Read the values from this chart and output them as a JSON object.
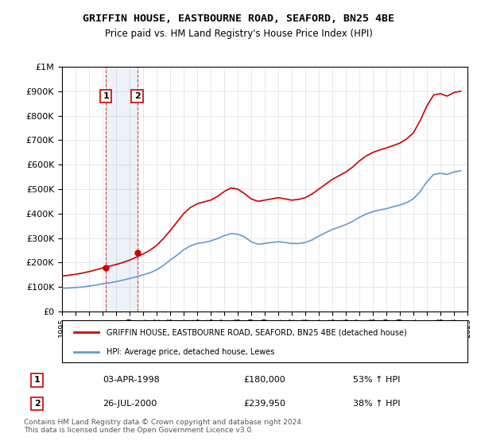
{
  "title": "GRIFFIN HOUSE, EASTBOURNE ROAD, SEAFORD, BN25 4BE",
  "subtitle": "Price paid vs. HM Land Registry's House Price Index (HPI)",
  "property_label": "GRIFFIN HOUSE, EASTBOURNE ROAD, SEAFORD, BN25 4BE (detached house)",
  "hpi_label": "HPI: Average price, detached house, Lewes",
  "property_color": "#cc0000",
  "hpi_color": "#6699cc",
  "transaction1_date": "03-APR-1998",
  "transaction1_price": 180000,
  "transaction1_note": "53% ↑ HPI",
  "transaction2_date": "26-JUL-2000",
  "transaction2_price": 239950,
  "transaction2_note": "38% ↑ HPI",
  "transaction1_year": 1998.25,
  "transaction2_year": 2000.57,
  "footer": "Contains HM Land Registry data © Crown copyright and database right 2024.\nThis data is licensed under the Open Government Licence v3.0.",
  "ylim": [
    0,
    1000000
  ],
  "xlim": [
    1995,
    2025
  ],
  "background_color": "#ffffff",
  "plot_background": "#ffffff",
  "grid_color": "#dddddd",
  "hpi_years": [
    1995,
    1995.5,
    1996,
    1996.5,
    1997,
    1997.5,
    1998,
    1998.5,
    1999,
    1999.5,
    2000,
    2000.5,
    2001,
    2001.5,
    2002,
    2002.5,
    2003,
    2003.5,
    2004,
    2004.5,
    2005,
    2005.5,
    2006,
    2006.5,
    2007,
    2007.5,
    2008,
    2008.5,
    2009,
    2009.5,
    2010,
    2010.5,
    2011,
    2011.5,
    2012,
    2012.5,
    2013,
    2013.5,
    2014,
    2014.5,
    2015,
    2015.5,
    2016,
    2016.5,
    2017,
    2017.5,
    2018,
    2018.5,
    2019,
    2019.5,
    2020,
    2020.5,
    2021,
    2021.5,
    2022,
    2022.5,
    2023,
    2023.5,
    2024,
    2024.5
  ],
  "hpi_values": [
    95000,
    96000,
    98000,
    100000,
    104000,
    108000,
    113000,
    117000,
    122000,
    128000,
    135000,
    142000,
    150000,
    158000,
    170000,
    188000,
    210000,
    230000,
    252000,
    268000,
    278000,
    282000,
    288000,
    298000,
    310000,
    318000,
    316000,
    305000,
    285000,
    275000,
    278000,
    282000,
    285000,
    282000,
    278000,
    278000,
    282000,
    292000,
    308000,
    322000,
    335000,
    345000,
    355000,
    368000,
    385000,
    398000,
    408000,
    415000,
    420000,
    428000,
    435000,
    445000,
    460000,
    490000,
    530000,
    560000,
    565000,
    560000,
    570000,
    575000
  ],
  "prop_years": [
    1995,
    1995.5,
    1996,
    1996.5,
    1997,
    1997.5,
    1998,
    1998.5,
    1999,
    1999.5,
    2000,
    2000.5,
    2001,
    2001.5,
    2002,
    2002.5,
    2003,
    2003.5,
    2004,
    2004.5,
    2005,
    2005.5,
    2006,
    2006.5,
    2007,
    2007.5,
    2008,
    2008.5,
    2009,
    2009.5,
    2010,
    2010.5,
    2011,
    2011.5,
    2012,
    2012.5,
    2013,
    2013.5,
    2014,
    2014.5,
    2015,
    2015.5,
    2016,
    2016.5,
    2017,
    2017.5,
    2018,
    2018.5,
    2019,
    2019.5,
    2020,
    2020.5,
    2021,
    2021.5,
    2022,
    2022.5,
    2023,
    2023.5,
    2024,
    2024.5
  ],
  "prop_values": [
    145000,
    148000,
    152000,
    157000,
    163000,
    170000,
    178000,
    185000,
    192000,
    200000,
    210000,
    222000,
    235000,
    250000,
    270000,
    298000,
    330000,
    365000,
    400000,
    425000,
    440000,
    448000,
    455000,
    470000,
    490000,
    505000,
    500000,
    482000,
    460000,
    450000,
    455000,
    460000,
    465000,
    460000,
    455000,
    458000,
    465000,
    480000,
    500000,
    520000,
    540000,
    555000,
    570000,
    590000,
    615000,
    635000,
    650000,
    660000,
    668000,
    678000,
    688000,
    705000,
    730000,
    780000,
    840000,
    885000,
    890000,
    880000,
    895000,
    900000
  ]
}
